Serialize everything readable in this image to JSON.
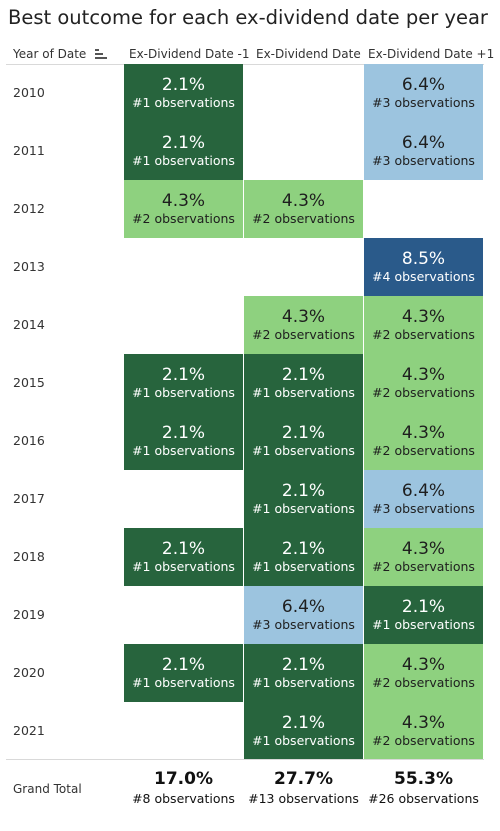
{
  "title": "Best outcome for each ex-dividend date per year",
  "header": {
    "year_label": "Year of Date",
    "sort_icon": "sort-descending-icon",
    "columns": [
      "Ex-Dividend Date -1",
      "Ex-Dividend Date",
      "Ex-Dividend Date +1"
    ]
  },
  "colors": {
    "dark_green": "#27643d",
    "light_green": "#8ed17f",
    "light_blue": "#9cc4df",
    "dark_blue": "#2a5a8a"
  },
  "chart_data": {
    "type": "heatmap",
    "title": "Best outcome for each ex-dividend date per year",
    "rows": [
      "2010",
      "2011",
      "2012",
      "2013",
      "2014",
      "2015",
      "2016",
      "2017",
      "2018",
      "2019",
      "2020",
      "2021"
    ],
    "columns": [
      "Ex-Dividend Date -1",
      "Ex-Dividend Date",
      "Ex-Dividend Date +1"
    ],
    "cells": [
      [
        {
          "value": "2.1%",
          "obs": "#1 observations",
          "count": 1
        },
        null,
        {
          "value": "6.4%",
          "obs": "#3 observations",
          "count": 3
        }
      ],
      [
        {
          "value": "2.1%",
          "obs": "#1 observations",
          "count": 1
        },
        null,
        {
          "value": "6.4%",
          "obs": "#3 observations",
          "count": 3
        }
      ],
      [
        {
          "value": "4.3%",
          "obs": "#2 observations",
          "count": 2
        },
        {
          "value": "4.3%",
          "obs": "#2 observations",
          "count": 2
        },
        null
      ],
      [
        null,
        null,
        {
          "value": "8.5%",
          "obs": "#4 observations",
          "count": 4
        }
      ],
      [
        null,
        {
          "value": "4.3%",
          "obs": "#2 observations",
          "count": 2
        },
        {
          "value": "4.3%",
          "obs": "#2 observations",
          "count": 2
        }
      ],
      [
        {
          "value": "2.1%",
          "obs": "#1 observations",
          "count": 1
        },
        {
          "value": "2.1%",
          "obs": "#1 observations",
          "count": 1
        },
        {
          "value": "4.3%",
          "obs": "#2 observations",
          "count": 2
        }
      ],
      [
        {
          "value": "2.1%",
          "obs": "#1 observations",
          "count": 1
        },
        {
          "value": "2.1%",
          "obs": "#1 observations",
          "count": 1
        },
        {
          "value": "4.3%",
          "obs": "#2 observations",
          "count": 2
        }
      ],
      [
        null,
        {
          "value": "2.1%",
          "obs": "#1 observations",
          "count": 1
        },
        {
          "value": "6.4%",
          "obs": "#3 observations",
          "count": 3
        }
      ],
      [
        {
          "value": "2.1%",
          "obs": "#1 observations",
          "count": 1
        },
        {
          "value": "2.1%",
          "obs": "#1 observations",
          "count": 1
        },
        {
          "value": "4.3%",
          "obs": "#2 observations",
          "count": 2
        }
      ],
      [
        null,
        {
          "value": "6.4%",
          "obs": "#3 observations",
          "count": 3
        },
        {
          "value": "2.1%",
          "obs": "#1 observations",
          "count": 1
        }
      ],
      [
        {
          "value": "2.1%",
          "obs": "#1 observations",
          "count": 1
        },
        {
          "value": "2.1%",
          "obs": "#1 observations",
          "count": 1
        },
        {
          "value": "4.3%",
          "obs": "#2 observations",
          "count": 2
        }
      ],
      [
        null,
        {
          "value": "2.1%",
          "obs": "#1 observations",
          "count": 1
        },
        {
          "value": "4.3%",
          "obs": "#2 observations",
          "count": 2
        }
      ]
    ],
    "grand_total": {
      "label": "Grand Total",
      "values": [
        {
          "value": "17.0%",
          "obs": "#8 observations"
        },
        {
          "value": "27.7%",
          "obs": "#13 observations"
        },
        {
          "value": "55.3%",
          "obs": "#26 observations"
        }
      ]
    }
  }
}
